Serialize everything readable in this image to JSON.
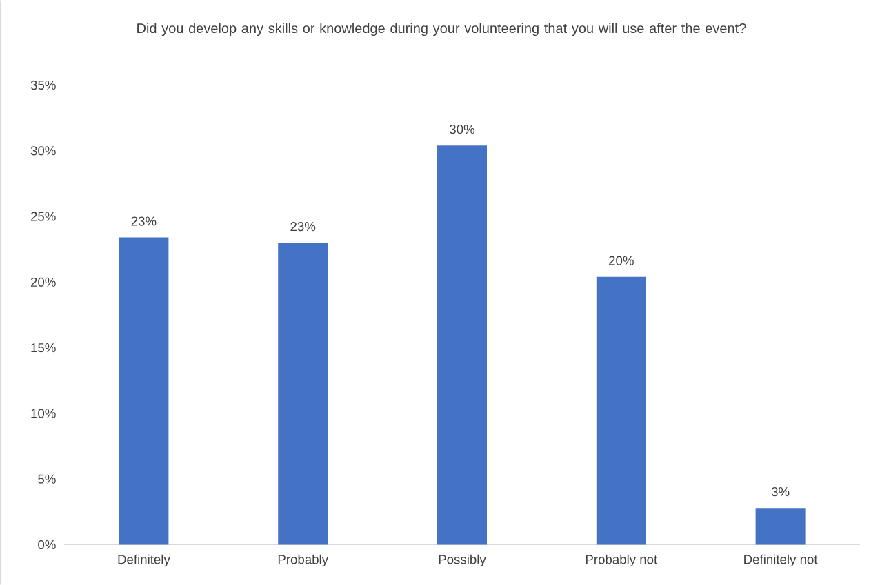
{
  "chart_data": {
    "type": "bar",
    "title": "Did you develop any skills or knowledge during your volunteering that you will use after the event?",
    "categories": [
      "Definitely",
      "Probably",
      "Possibly",
      "Probably not",
      "Definitely not"
    ],
    "values": [
      23.4,
      23.0,
      30.4,
      20.4,
      2.8
    ],
    "value_labels": [
      "23%",
      "23%",
      "30%",
      "20%",
      "3%"
    ],
    "color": "#4472c4",
    "ylim": [
      0,
      35
    ],
    "yticks": [
      {
        "value": 0,
        "label": "0%"
      },
      {
        "value": 5,
        "label": "5%"
      },
      {
        "value": 10,
        "label": "10%"
      },
      {
        "value": 15,
        "label": "15%"
      },
      {
        "value": 20,
        "label": "20%"
      },
      {
        "value": 25,
        "label": "25%"
      },
      {
        "value": 30,
        "label": "30%"
      },
      {
        "value": 35,
        "label": "35%"
      }
    ]
  }
}
